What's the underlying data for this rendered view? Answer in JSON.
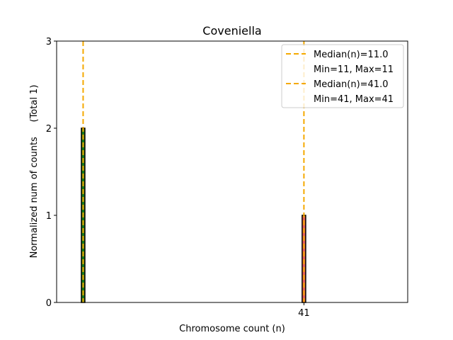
{
  "chart_data": {
    "type": "bar",
    "title": "Coveniella",
    "xlabel": "Chromosome count (n)",
    "ylabel": "Normalized num of counts     (Total 1)",
    "xlim": [
      7.4,
      55.1
    ],
    "ylim": [
      0,
      3
    ],
    "yticks": [
      0,
      1,
      2,
      3
    ],
    "xticks": [
      {
        "value": 41,
        "label": "41"
      }
    ],
    "bars": [
      {
        "x": 11,
        "value": 2,
        "fill": "#1a7a1a",
        "edge": "#000000"
      },
      {
        "x": 41,
        "value": 1,
        "fill": "#e8625b",
        "edge": "#000000"
      }
    ],
    "baseline_segments": [
      [
        7.4,
        16.3
      ]
    ],
    "median_lines": [
      {
        "x": 11,
        "label": "Median(n)=11.0",
        "range_label": "Min=11, Max=11",
        "color": "#f5a900"
      },
      {
        "x": 41,
        "label": "Median(n)=41.0",
        "range_label": "Min=41, Max=41",
        "color": "#f5a900"
      }
    ],
    "legend_position": "upper right"
  }
}
